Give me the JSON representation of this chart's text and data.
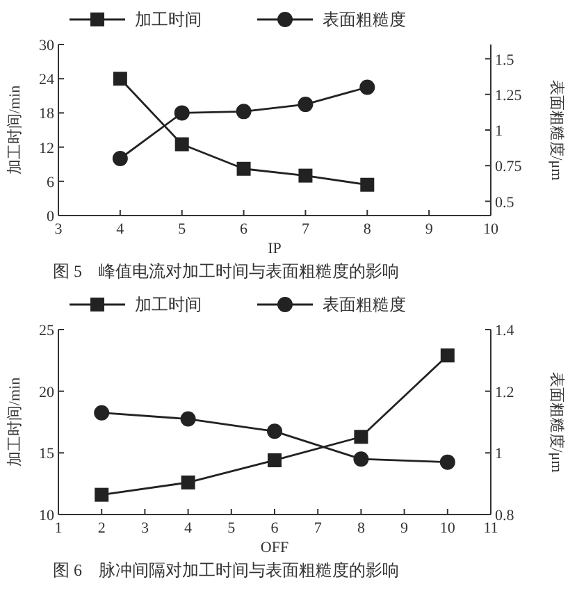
{
  "chart_data": [
    {
      "type": "line",
      "xlabel": "IP",
      "ylabel": "加工时间/min",
      "y2label": "表面粗糙度/μm",
      "x": [
        4,
        5,
        6,
        7,
        8
      ],
      "xlim": [
        3,
        10
      ],
      "xticks": [
        3,
        4,
        5,
        6,
        7,
        8,
        9,
        10
      ],
      "ylim": [
        0,
        30
      ],
      "yticks": [
        0,
        6,
        12,
        18,
        24,
        30
      ],
      "y2lim": [
        0.4,
        1.6
      ],
      "y2ticks": [
        0.5,
        0.75,
        1,
        1.25,
        1.5
      ],
      "legend": "top",
      "grid": false,
      "series": [
        {
          "name": "加工时间",
          "color": "#222222",
          "marker": "square",
          "values": [
            24,
            12.5,
            8.2,
            7,
            5.4
          ]
        },
        {
          "name": "表面粗糙度",
          "color": "#222222",
          "marker": "circle",
          "axis": "y2",
          "values": [
            0.8,
            1.12,
            1.13,
            1.18,
            1.3
          ]
        }
      ],
      "annotations": [
        "图 5　峰值电流对加工时间与表面粗糙度的影响"
      ]
    },
    {
      "type": "line",
      "xlabel": "OFF",
      "ylabel": "加工时间/min",
      "y2label": "表面粗糙度/μm",
      "x": [
        2,
        4,
        6,
        8,
        10
      ],
      "xlim": [
        1,
        11
      ],
      "xticks": [
        1,
        2,
        3,
        4,
        5,
        6,
        7,
        8,
        9,
        10,
        11
      ],
      "ylim": [
        10,
        25
      ],
      "yticks": [
        10,
        15,
        20,
        25
      ],
      "y2lim": [
        0.8,
        1.4
      ],
      "y2ticks": [
        0.8,
        1,
        1.2,
        1.4
      ],
      "legend": "top",
      "grid": false,
      "series": [
        {
          "name": "加工时间",
          "color": "#222222",
          "marker": "square",
          "values": [
            11.6,
            12.6,
            14.4,
            16.3,
            22.9
          ]
        },
        {
          "name": "表面粗糙度",
          "color": "#222222",
          "marker": "circle",
          "axis": "y2",
          "values": [
            1.13,
            1.11,
            1.07,
            0.98,
            0.97
          ]
        }
      ],
      "annotations": [
        "图 6　脉冲间隔对加工时间与表面粗糙度的影响"
      ]
    }
  ]
}
